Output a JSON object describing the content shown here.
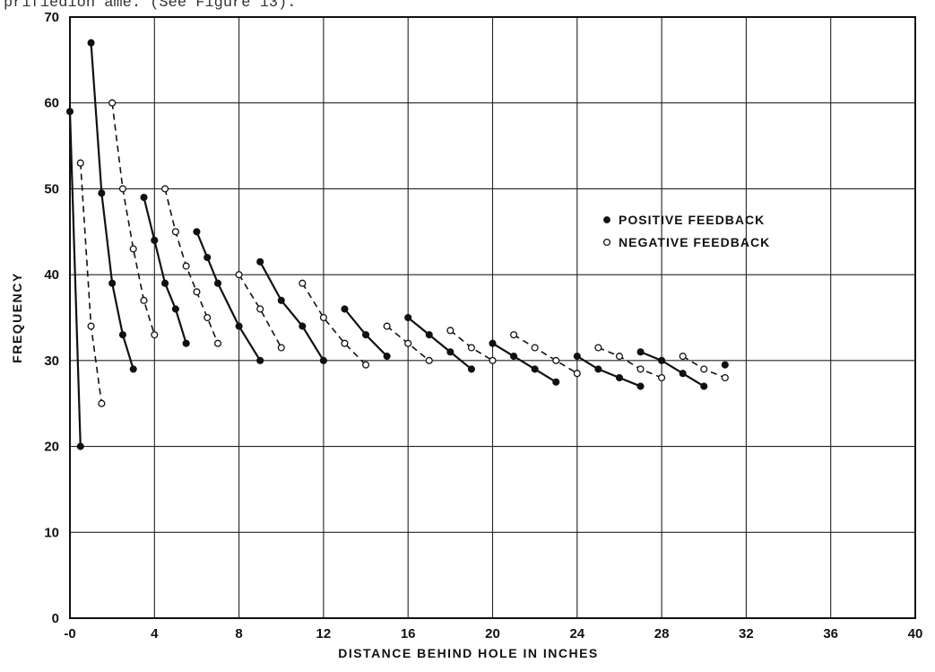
{
  "header_text": "prifiedion ame. (See Figure 13).",
  "chart_data": {
    "type": "line",
    "title": "",
    "xlabel": "DISTANCE BEHIND HOLE IN INCHES",
    "ylabel": "FREQUENCY",
    "xlim": [
      0,
      40
    ],
    "ylim": [
      0,
      70
    ],
    "x_ticks": [
      0,
      4,
      8,
      12,
      16,
      20,
      24,
      28,
      32,
      36,
      40
    ],
    "x_tick_labels": [
      "-0",
      "4",
      "8",
      "12",
      "16",
      "20",
      "24",
      "28",
      "32",
      "36",
      "40"
    ],
    "y_ticks": [
      0,
      10,
      20,
      30,
      40,
      50,
      60,
      70
    ],
    "y_tick_labels": [
      "0",
      "10",
      "20",
      "30",
      "40",
      "50",
      "60",
      "70"
    ],
    "grid": true,
    "legend_position": "right",
    "legend": [
      {
        "label": "POSITIVE FEEDBACK",
        "marker": "filled-circle",
        "line": "solid"
      },
      {
        "label": "NEGATIVE FEEDBACK",
        "marker": "open-circle",
        "line": "dashed"
      }
    ],
    "series": [
      {
        "group": "positive",
        "points": [
          [
            0,
            59
          ],
          [
            0.5,
            20
          ]
        ]
      },
      {
        "group": "negative",
        "points": [
          [
            0.5,
            53
          ],
          [
            1,
            34
          ],
          [
            1.5,
            25
          ]
        ]
      },
      {
        "group": "positive",
        "points": [
          [
            1,
            67
          ],
          [
            1.5,
            49.5
          ],
          [
            2,
            39
          ],
          [
            2.5,
            33
          ],
          [
            3,
            29
          ]
        ]
      },
      {
        "group": "negative",
        "points": [
          [
            2,
            60
          ],
          [
            2.5,
            50
          ],
          [
            3,
            43
          ],
          [
            3.5,
            37
          ],
          [
            4,
            33
          ]
        ]
      },
      {
        "group": "positive",
        "points": [
          [
            3.5,
            49
          ],
          [
            4,
            44
          ],
          [
            4.5,
            39
          ],
          [
            5,
            36
          ],
          [
            5.5,
            32
          ]
        ]
      },
      {
        "group": "negative",
        "points": [
          [
            4.5,
            50
          ],
          [
            5,
            45
          ],
          [
            5.5,
            41
          ],
          [
            6,
            38
          ],
          [
            6.5,
            35
          ],
          [
            7,
            32
          ]
        ]
      },
      {
        "group": "positive",
        "points": [
          [
            6,
            45
          ],
          [
            6.5,
            42
          ],
          [
            7,
            39
          ],
          [
            8,
            34
          ],
          [
            9,
            30
          ]
        ]
      },
      {
        "group": "negative",
        "points": [
          [
            8,
            40
          ],
          [
            9,
            36
          ],
          [
            10,
            31.5
          ]
        ]
      },
      {
        "group": "positive",
        "points": [
          [
            9,
            41.5
          ],
          [
            10,
            37
          ],
          [
            11,
            34
          ],
          [
            12,
            30
          ]
        ]
      },
      {
        "group": "negative",
        "points": [
          [
            11,
            39
          ],
          [
            12,
            35
          ],
          [
            13,
            32
          ],
          [
            14,
            29.5
          ]
        ]
      },
      {
        "group": "positive",
        "points": [
          [
            13,
            36
          ],
          [
            14,
            33
          ],
          [
            15,
            30.5
          ]
        ]
      },
      {
        "group": "negative",
        "points": [
          [
            15,
            34
          ],
          [
            16,
            32
          ],
          [
            17,
            30
          ]
        ]
      },
      {
        "group": "positive",
        "points": [
          [
            16,
            35
          ],
          [
            17,
            33
          ],
          [
            18,
            31
          ],
          [
            19,
            29
          ]
        ]
      },
      {
        "group": "negative",
        "points": [
          [
            18,
            33.5
          ],
          [
            19,
            31.5
          ],
          [
            20,
            30
          ]
        ]
      },
      {
        "group": "positive",
        "points": [
          [
            20,
            32
          ],
          [
            21,
            30.5
          ],
          [
            22,
            29
          ],
          [
            23,
            27.5
          ]
        ]
      },
      {
        "group": "negative",
        "points": [
          [
            21,
            33
          ],
          [
            22,
            31.5
          ],
          [
            23,
            30
          ],
          [
            24,
            28.5
          ]
        ]
      },
      {
        "group": "positive",
        "points": [
          [
            24,
            30.5
          ],
          [
            25,
            29
          ],
          [
            26,
            28
          ],
          [
            27,
            27
          ]
        ]
      },
      {
        "group": "negative",
        "points": [
          [
            25,
            31.5
          ],
          [
            26,
            30.5
          ],
          [
            27,
            29
          ],
          [
            28,
            28
          ]
        ]
      },
      {
        "group": "positive",
        "points": [
          [
            27,
            31
          ],
          [
            28,
            30
          ],
          [
            29,
            28.5
          ],
          [
            30,
            27
          ]
        ]
      },
      {
        "group": "negative",
        "points": [
          [
            29,
            30.5
          ],
          [
            30,
            29
          ],
          [
            31,
            28
          ]
        ]
      },
      {
        "group": "positive",
        "points": [
          [
            31,
            29.5
          ]
        ]
      }
    ]
  }
}
